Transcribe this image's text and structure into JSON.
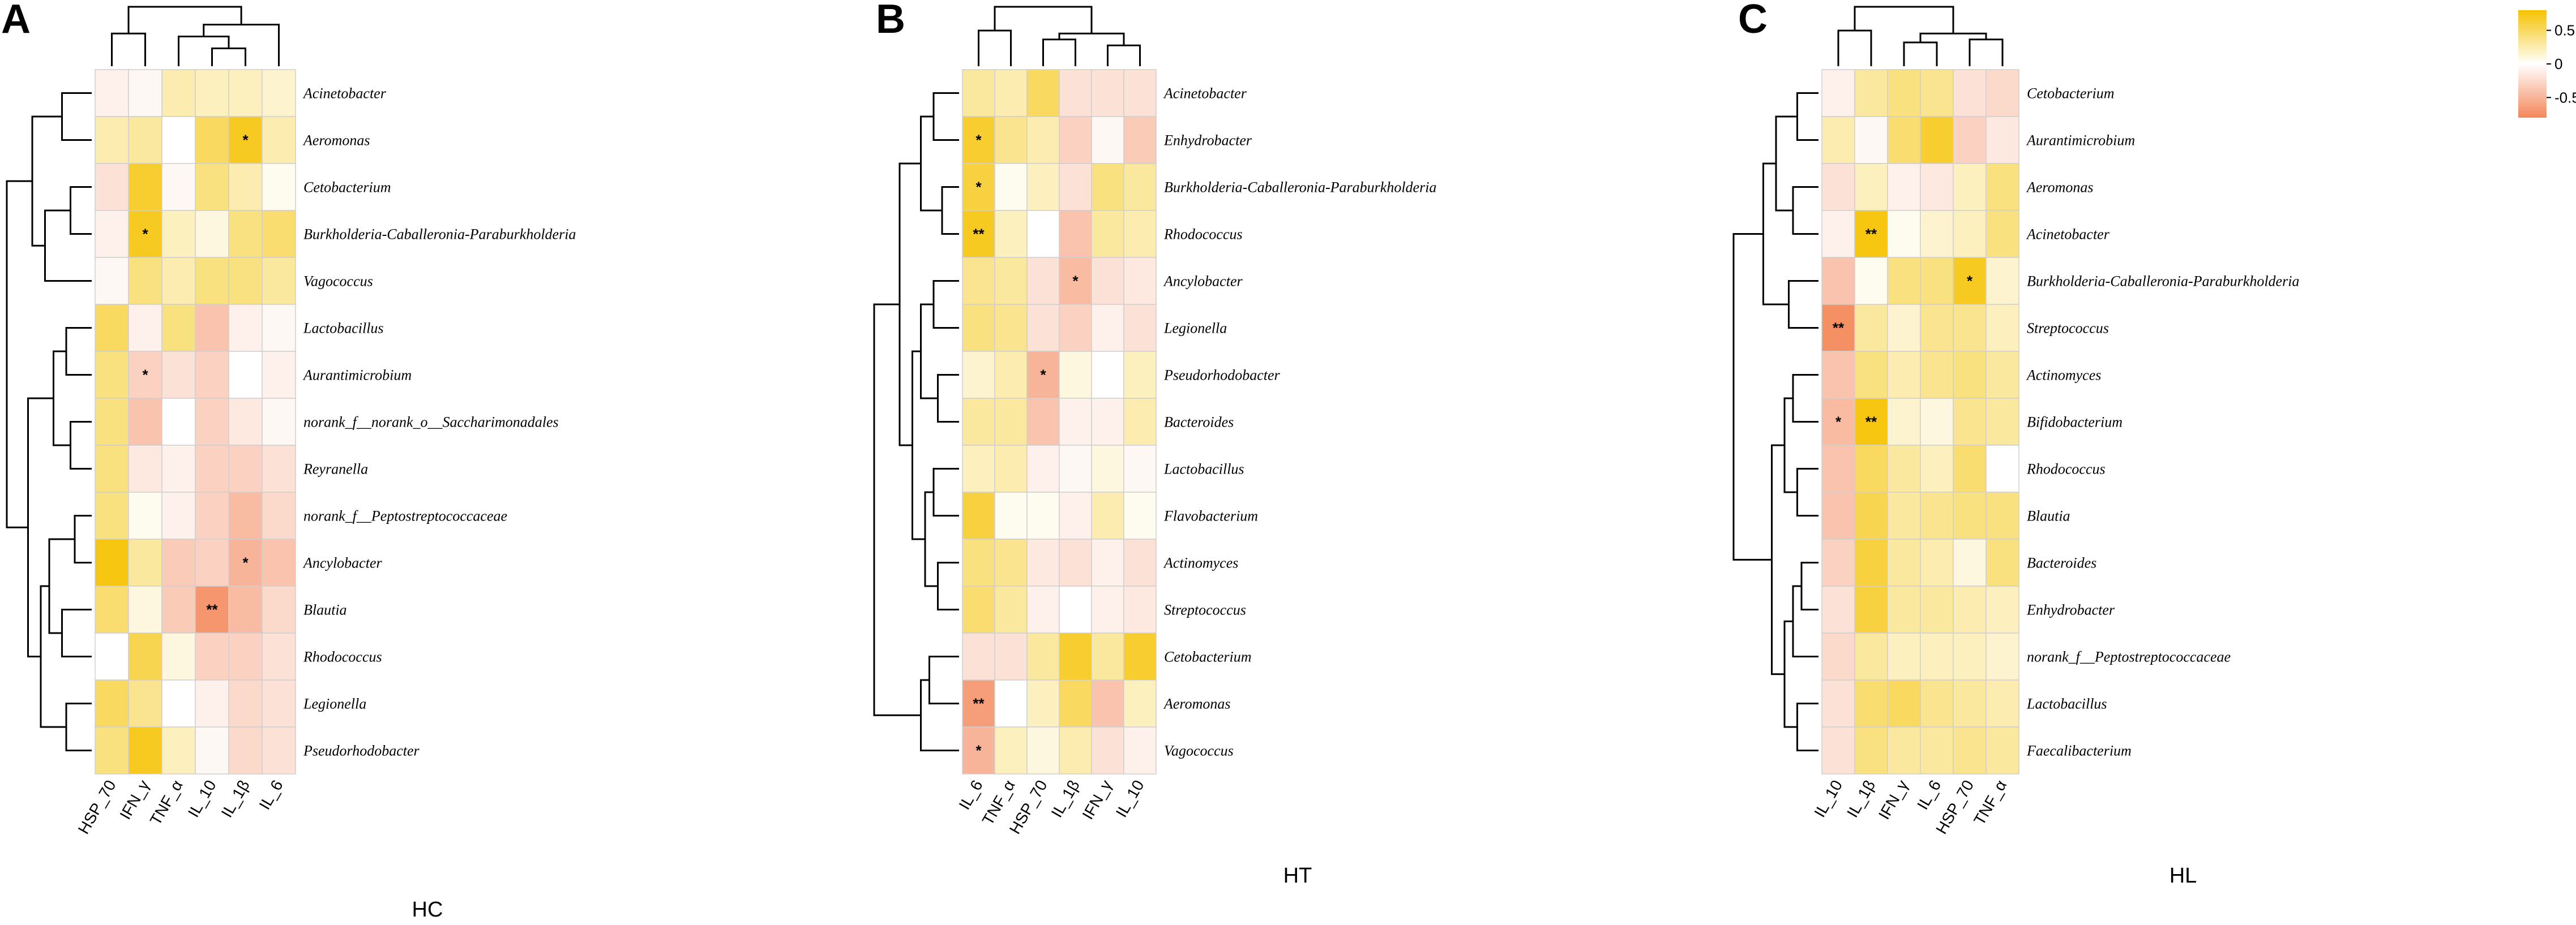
{
  "chart_data": [
    {
      "type": "heatmap",
      "panel": "A",
      "group_label": "HC",
      "columns": [
        "HSP_70",
        "IFN_γ",
        "TNF_α",
        "IL_10",
        "IL_1β",
        "IL_6"
      ],
      "rows": [
        "Acinetobacter",
        "Aeromonas",
        "Cetobacterium",
        "Burkholderia-Caballeronia-Paraburkholderia",
        "Vagococcus",
        "Lactobacillus",
        "Aurantimicrobium",
        "norank_f__norank_o__Saccharimonadales",
        "Reyranella",
        "norank_f__Peptostreptococcaceae",
        "Ancylobacter",
        "Blautia",
        "Rhodococcus",
        "Legionella",
        "Pseudorhodobacter"
      ],
      "values": [
        [
          -0.1,
          -0.05,
          0.25,
          0.2,
          0.2,
          0.15
        ],
        [
          0.25,
          0.3,
          0.0,
          0.5,
          0.7,
          0.25
        ],
        [
          -0.2,
          0.65,
          -0.05,
          0.4,
          0.25,
          0.05
        ],
        [
          -0.1,
          0.7,
          0.2,
          0.1,
          0.4,
          0.45
        ],
        [
          -0.05,
          0.4,
          0.25,
          0.4,
          0.4,
          0.3
        ],
        [
          0.5,
          -0.1,
          0.4,
          -0.4,
          -0.1,
          -0.05
        ],
        [
          0.4,
          -0.3,
          -0.2,
          -0.3,
          0.0,
          -0.1
        ],
        [
          0.4,
          -0.4,
          0.0,
          -0.3,
          -0.15,
          -0.05
        ],
        [
          0.4,
          -0.15,
          -0.1,
          -0.3,
          -0.3,
          -0.2
        ],
        [
          0.4,
          0.05,
          -0.1,
          -0.3,
          -0.45,
          -0.25
        ],
        [
          0.75,
          0.3,
          -0.35,
          -0.3,
          -0.5,
          -0.4
        ],
        [
          0.45,
          0.1,
          -0.35,
          -0.7,
          -0.45,
          -0.25
        ],
        [
          0.0,
          0.55,
          0.1,
          -0.3,
          -0.3,
          -0.2
        ],
        [
          0.5,
          0.35,
          0.0,
          -0.1,
          -0.25,
          -0.2
        ],
        [
          0.4,
          0.7,
          0.2,
          -0.05,
          -0.25,
          -0.2
        ]
      ],
      "significance": [
        [
          "",
          "",
          "",
          "",
          "",
          ""
        ],
        [
          "",
          "",
          "",
          "",
          "*",
          ""
        ],
        [
          "",
          "",
          "",
          "",
          "",
          ""
        ],
        [
          "",
          "*",
          "",
          "",
          "",
          ""
        ],
        [
          "",
          "",
          "",
          "",
          "",
          ""
        ],
        [
          "",
          "",
          "",
          "",
          "",
          ""
        ],
        [
          "",
          "*",
          "",
          "",
          "",
          ""
        ],
        [
          "",
          "",
          "",
          "",
          "",
          ""
        ],
        [
          "",
          "",
          "",
          "",
          "",
          ""
        ],
        [
          "",
          "",
          "",
          "",
          "",
          ""
        ],
        [
          "",
          "",
          "",
          "",
          "*",
          ""
        ],
        [
          "",
          "",
          "",
          "**",
          "",
          ""
        ],
        [
          "",
          "",
          "",
          "",
          "",
          ""
        ],
        [
          "",
          "",
          "",
          "",
          "",
          ""
        ],
        [
          "",
          "",
          "",
          "",
          "",
          ""
        ]
      ]
    },
    {
      "type": "heatmap",
      "panel": "B",
      "group_label": "HT",
      "columns": [
        "IL_6",
        "TNF_α",
        "HSP_70",
        "IL_1β",
        "IFN_γ",
        "IL_10"
      ],
      "rows": [
        "Acinetobacter",
        "Enhydrobacter",
        "Burkholderia-Caballeronia-Paraburkholderia",
        "Rhodococcus",
        "Ancylobacter",
        "Legionella",
        "Pseudorhodobacter",
        "Bacteroides",
        "Lactobacillus",
        "Flavobacterium",
        "Actinomyces",
        "Streptococcus",
        "Cetobacterium",
        "Aeromonas",
        "Vagococcus"
      ],
      "values": [
        [
          0.3,
          0.25,
          0.5,
          -0.2,
          -0.2,
          -0.2
        ],
        [
          0.65,
          0.35,
          0.25,
          -0.3,
          -0.05,
          -0.35
        ],
        [
          0.6,
          0.05,
          0.2,
          -0.2,
          0.4,
          0.3
        ],
        [
          0.7,
          0.2,
          0.0,
          -0.4,
          0.3,
          0.25
        ],
        [
          0.35,
          0.3,
          -0.2,
          -0.45,
          -0.2,
          -0.15
        ],
        [
          0.4,
          0.35,
          -0.2,
          -0.3,
          -0.1,
          -0.2
        ],
        [
          0.15,
          0.25,
          -0.5,
          0.1,
          0.0,
          0.2
        ],
        [
          0.3,
          0.3,
          -0.4,
          -0.1,
          -0.1,
          0.25
        ],
        [
          0.2,
          0.25,
          -0.1,
          -0.05,
          0.1,
          -0.05
        ],
        [
          0.6,
          0.05,
          0.05,
          -0.1,
          0.25,
          0.05
        ],
        [
          0.4,
          0.35,
          -0.15,
          -0.2,
          -0.1,
          -0.2
        ],
        [
          0.45,
          0.3,
          -0.1,
          0.0,
          -0.1,
          -0.15
        ],
        [
          -0.2,
          -0.2,
          0.3,
          0.65,
          0.3,
          0.65
        ],
        [
          -0.65,
          0.0,
          0.2,
          0.5,
          -0.4,
          0.2
        ],
        [
          -0.5,
          0.2,
          0.1,
          0.25,
          -0.2,
          -0.1
        ]
      ],
      "significance": [
        [
          "",
          "",
          "",
          "",
          "",
          ""
        ],
        [
          "*",
          "",
          "",
          "",
          "",
          ""
        ],
        [
          "*",
          "",
          "",
          "",
          "",
          ""
        ],
        [
          "**",
          "",
          "",
          "",
          "",
          ""
        ],
        [
          "",
          "",
          "",
          "*",
          "",
          ""
        ],
        [
          "",
          "",
          "",
          "",
          "",
          ""
        ],
        [
          "",
          "",
          "*",
          "",
          "",
          ""
        ],
        [
          "",
          "",
          "",
          "",
          "",
          ""
        ],
        [
          "",
          "",
          "",
          "",
          "",
          ""
        ],
        [
          "",
          "",
          "",
          "",
          "",
          ""
        ],
        [
          "",
          "",
          "",
          "",
          "",
          ""
        ],
        [
          "",
          "",
          "",
          "",
          "",
          ""
        ],
        [
          "",
          "",
          "",
          "",
          "",
          ""
        ],
        [
          "**",
          "",
          "",
          "",
          "",
          ""
        ],
        [
          "*",
          "",
          "",
          "",
          "",
          ""
        ]
      ]
    },
    {
      "type": "heatmap",
      "panel": "C",
      "group_label": "HL",
      "columns": [
        "IL_10",
        "IL_1β",
        "IFN_γ",
        "IL_6",
        "HSP_70",
        "TNF_α"
      ],
      "rows": [
        "Cetobacterium",
        "Aurantimicrobium",
        "Aeromonas",
        "Acinetobacter",
        "Burkholderia-Caballeronia-Paraburkholderia",
        "Streptococcus",
        "Actinomyces",
        "Bifidobacterium",
        "Rhodococcus",
        "Blautia",
        "Bacteroides",
        "Enhydrobacter",
        "norank_f__Peptostreptococcaceae",
        "Lactobacillus",
        "Faecalibacterium"
      ],
      "values": [
        [
          -0.1,
          0.3,
          0.4,
          0.35,
          -0.2,
          -0.25
        ],
        [
          0.25,
          -0.05,
          0.45,
          0.65,
          -0.3,
          -0.15
        ],
        [
          -0.2,
          0.2,
          -0.1,
          -0.15,
          0.2,
          0.4
        ],
        [
          -0.1,
          0.75,
          0.05,
          0.15,
          0.2,
          0.4
        ],
        [
          -0.4,
          0.05,
          0.4,
          0.4,
          0.7,
          0.15
        ],
        [
          -0.75,
          0.3,
          0.15,
          0.35,
          0.35,
          0.2
        ],
        [
          -0.4,
          0.4,
          0.25,
          0.35,
          0.4,
          0.3
        ],
        [
          -0.45,
          0.75,
          0.15,
          0.1,
          0.35,
          0.3
        ],
        [
          -0.4,
          0.5,
          0.3,
          0.2,
          0.45,
          0.0
        ],
        [
          -0.4,
          0.55,
          0.3,
          0.35,
          0.4,
          0.4
        ],
        [
          -0.3,
          0.6,
          0.3,
          0.25,
          0.1,
          0.4
        ],
        [
          -0.2,
          0.6,
          0.3,
          0.3,
          0.25,
          0.2
        ],
        [
          -0.25,
          0.3,
          0.2,
          0.2,
          0.2,
          0.15
        ],
        [
          -0.2,
          0.45,
          0.5,
          0.35,
          0.3,
          0.25
        ],
        [
          -0.2,
          0.4,
          0.3,
          0.3,
          0.35,
          0.3
        ]
      ],
      "significance": [
        [
          "",
          "",
          "",
          "",
          "",
          ""
        ],
        [
          "",
          "",
          "",
          "",
          "",
          ""
        ],
        [
          "",
          "",
          "",
          "",
          "",
          ""
        ],
        [
          "",
          "**",
          "",
          "",
          "",
          ""
        ],
        [
          "",
          "",
          "",
          "",
          "*",
          ""
        ],
        [
          "**",
          "",
          "",
          "",
          "",
          ""
        ],
        [
          "",
          "",
          "",
          "",
          "",
          ""
        ],
        [
          "*",
          "**",
          "",
          "",
          "",
          ""
        ],
        [
          "",
          "",
          "",
          "",
          "",
          ""
        ],
        [
          "",
          "",
          "",
          "",
          "",
          ""
        ],
        [
          "",
          "",
          "",
          "",
          "",
          ""
        ],
        [
          "",
          "",
          "",
          "",
          "",
          ""
        ],
        [
          "",
          "",
          "",
          "",
          "",
          ""
        ],
        [
          "",
          "",
          "",
          "",
          "",
          ""
        ],
        [
          "",
          "",
          "",
          "",
          "",
          ""
        ]
      ]
    }
  ],
  "legend": {
    "ticks": [
      0.5,
      0,
      -0.5
    ],
    "tick_labels": [
      "0.5",
      "0",
      "-0.5"
    ],
    "range": [
      -0.8,
      0.8
    ]
  },
  "colors": {
    "high": "#f5c200",
    "mid": "#ffffff",
    "low": "#f4875a",
    "grid": "#cfcfcf"
  }
}
